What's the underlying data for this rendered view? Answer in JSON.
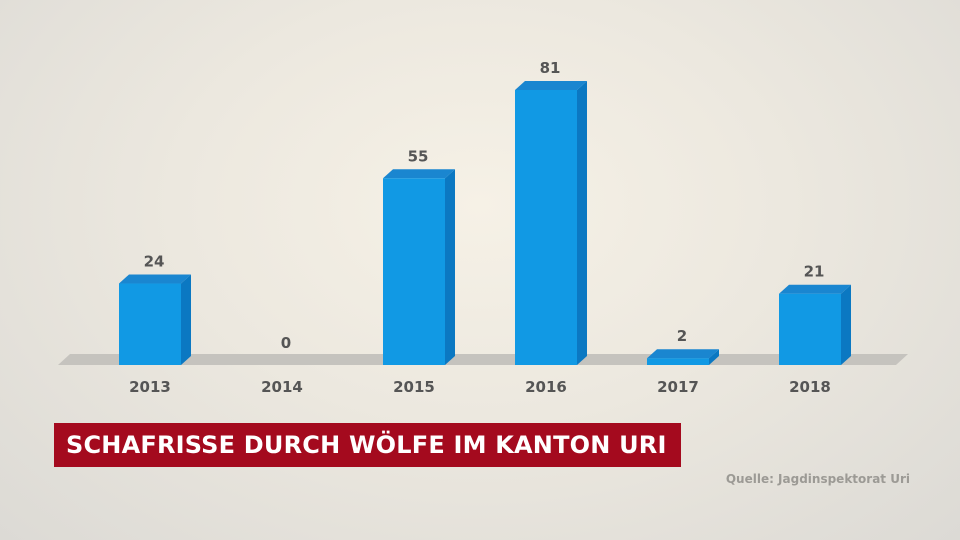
{
  "chart_data": {
    "type": "bar",
    "title": "SCHAFRISSE DURCH WÖLFE IM KANTON URI",
    "categories": [
      "2013",
      "2014",
      "2015",
      "2016",
      "2017",
      "2018"
    ],
    "values": [
      24,
      0,
      55,
      81,
      2,
      21
    ],
    "value_labels": [
      "24",
      "0",
      "55",
      "81",
      "2",
      "21"
    ],
    "ylim": [
      0,
      81
    ],
    "grid": false,
    "bar_color": "#1199e4",
    "bar_side_color": "#0b78c2",
    "bar_top_color": "#1a86d0",
    "floor_color": "#c5c3be"
  },
  "source": "Quelle: Jagdinspektorat Uri"
}
